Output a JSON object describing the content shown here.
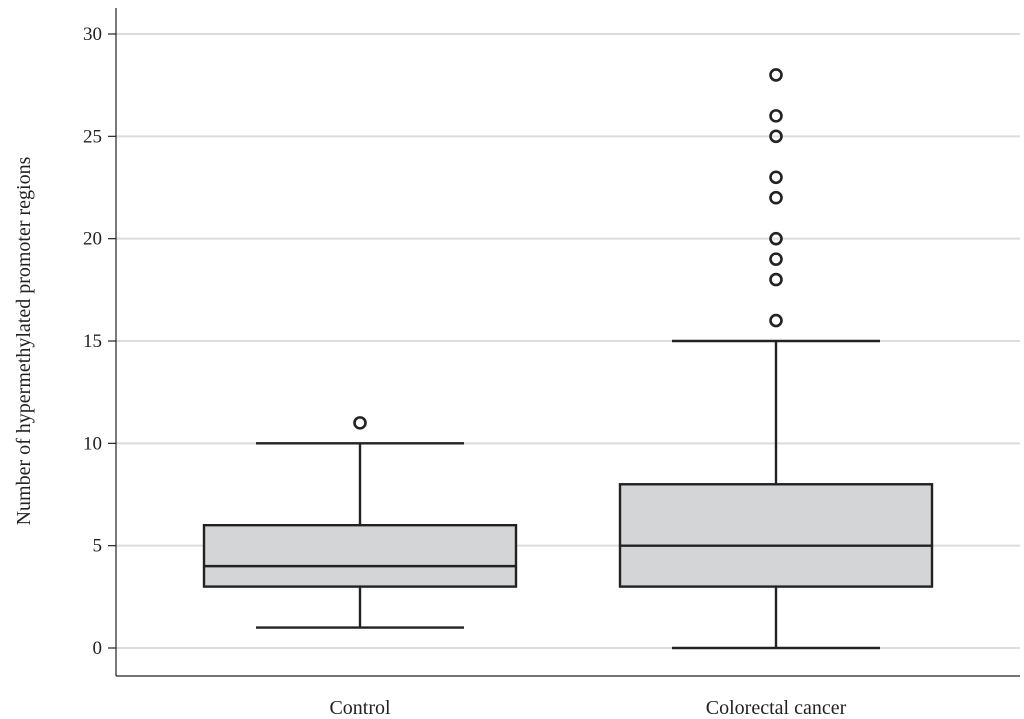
{
  "chart_data": {
    "type": "boxplot",
    "title": "",
    "xlabel": "",
    "ylabel": "Number of hypermethylated promoter regions",
    "ylim": [
      0,
      30
    ],
    "yticks": [
      0,
      5,
      10,
      15,
      20,
      25,
      30
    ],
    "grid": "horizontal",
    "legend": "none",
    "colors": {
      "box_fill": "#d4d5d7",
      "stroke": "#222222",
      "grid": "#dcdcdc"
    },
    "categories": [
      "Control",
      "Colorectal cancer"
    ],
    "boxes": [
      {
        "category": "Control",
        "whisker_low": 1,
        "q1": 3,
        "median": 4,
        "q3": 6,
        "whisker_high": 10,
        "outliers": [
          11
        ]
      },
      {
        "category": "Colorectal cancer",
        "whisker_low": 0,
        "q1": 3,
        "median": 5,
        "q3": 8,
        "whisker_high": 15,
        "outliers": [
          16,
          18,
          19,
          20,
          22,
          23,
          25,
          26,
          28
        ]
      }
    ]
  }
}
